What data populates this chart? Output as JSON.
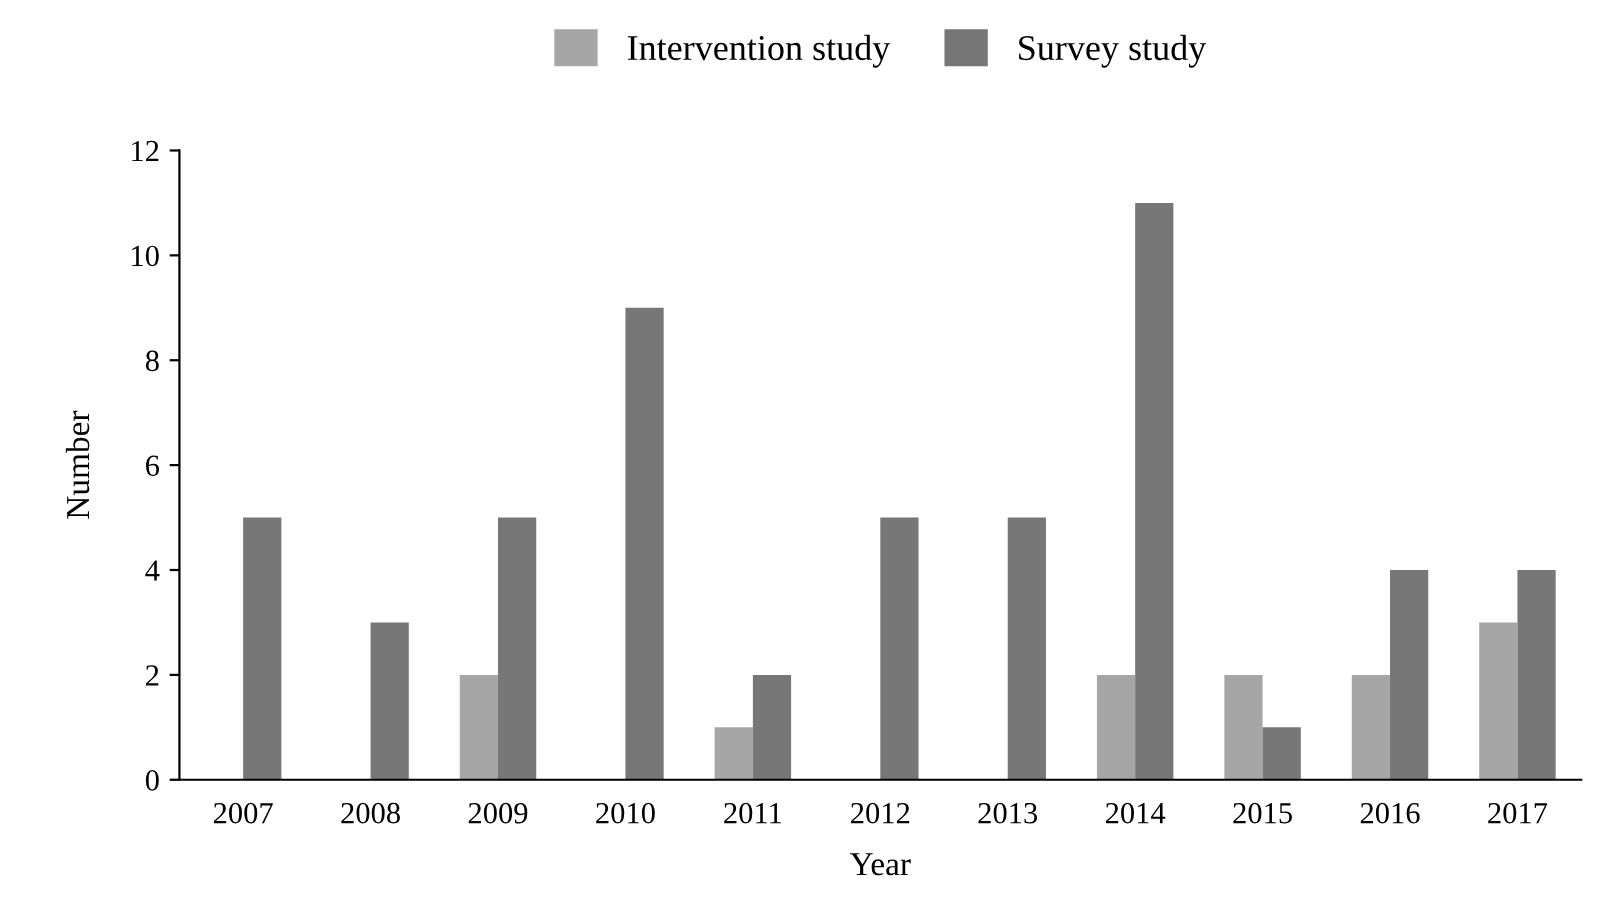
{
  "chart_data": {
    "type": "bar",
    "xlabel": "Year",
    "ylabel": "Number",
    "categories": [
      "2007",
      "2008",
      "2009",
      "2010",
      "2011",
      "2012",
      "2013",
      "2014",
      "2015",
      "2016",
      "2017"
    ],
    "series": [
      {
        "name": "Intervention study",
        "color": "#a6a6a6",
        "values": [
          0,
          0,
          2,
          0,
          1,
          0,
          0,
          2,
          2,
          2,
          3
        ]
      },
      {
        "name": "Survey study",
        "color": "#777777",
        "values": [
          5,
          3,
          5,
          9,
          2,
          5,
          5,
          11,
          1,
          4,
          4
        ]
      }
    ],
    "ylim": [
      0,
      12
    ],
    "yticks": [
      0,
      2,
      4,
      6,
      8,
      10,
      12
    ],
    "grid": false,
    "legend": "top"
  }
}
